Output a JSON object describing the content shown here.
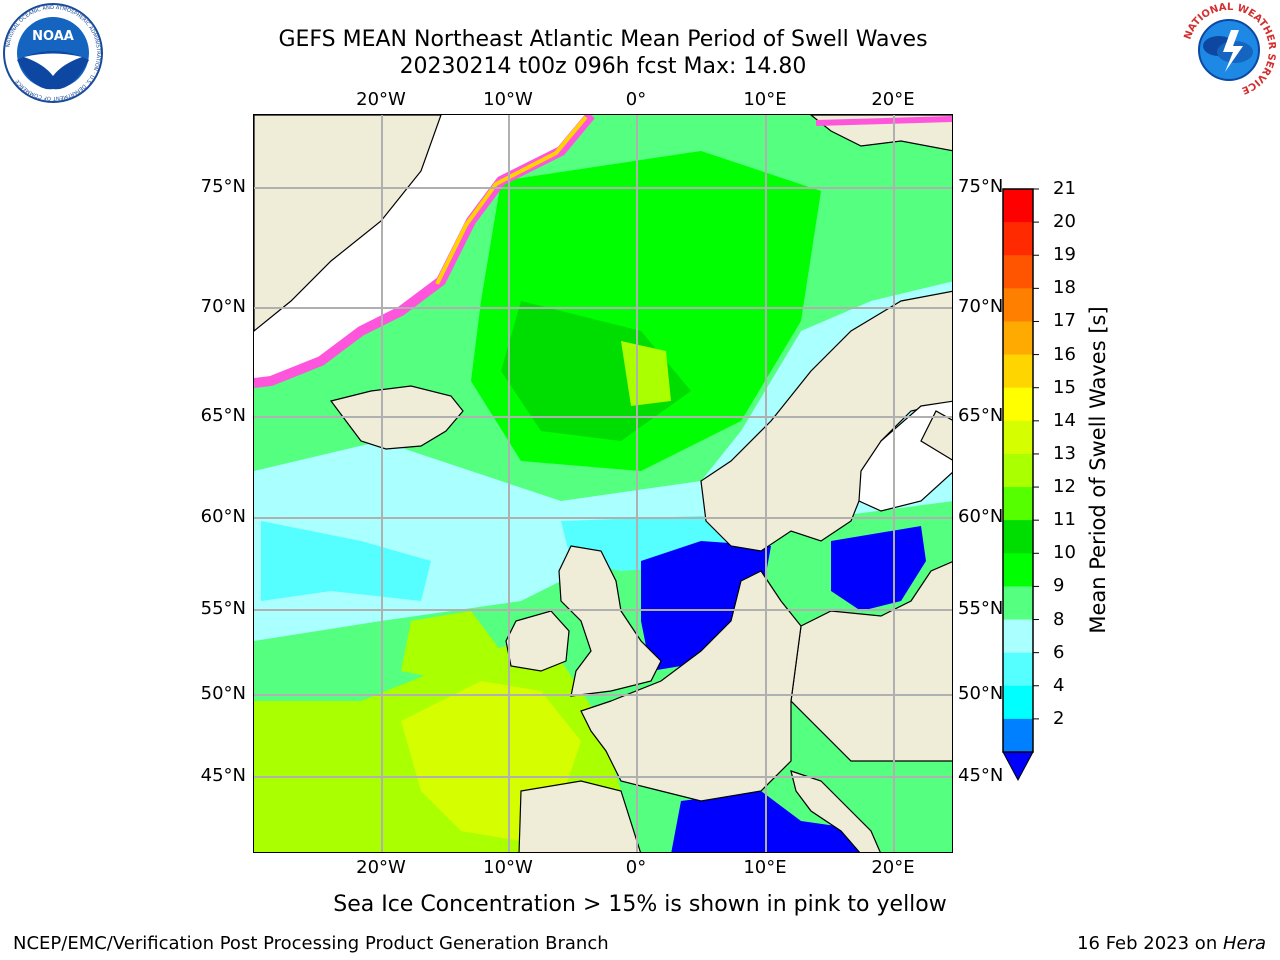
{
  "title": {
    "line1": "GEFS MEAN Northeast Atlantic Mean Period of Swell Waves",
    "line2": "20230214 t00z 096h fcst   Max: 14.80"
  },
  "logos": {
    "left": "NOAA",
    "left_ring": "NATIONAL OCEANIC AND ATMOSPHERIC ADMINISTRATION · U.S. DEPARTMENT OF COMMERCE",
    "right_ring": "NATIONAL WEATHER SERVICE"
  },
  "map": {
    "lon_labels": [
      "20°W",
      "10°W",
      "0°",
      "10°E",
      "20°E"
    ],
    "lat_labels": [
      "75°N",
      "70°N",
      "65°N",
      "60°N",
      "55°N",
      "50°N",
      "45°N"
    ]
  },
  "colorbar": {
    "label": "Mean Period of Swell Waves [s]",
    "ticks": [
      "21",
      "20",
      "19",
      "18",
      "17",
      "16",
      "15",
      "14",
      "13",
      "12",
      "11",
      "10",
      "9",
      "8",
      "6",
      "4",
      "2"
    ],
    "colors": [
      "#ff0000",
      "#ff2a00",
      "#ff5500",
      "#ff8000",
      "#ffaa00",
      "#ffd500",
      "#ffff00",
      "#d5ff00",
      "#aaff00",
      "#55ff00",
      "#00dd00",
      "#00ff00",
      "#55ff80",
      "#aaffff",
      "#55ffff",
      "#00ffff",
      "#0080ff"
    ],
    "min_color": "#0000ff"
  },
  "footer": {
    "note": "Sea Ice Concentration > 15% is shown in pink to yellow",
    "left": "NCEP/EMC/Verification Post Processing Product Generation Branch",
    "date": "16 Feb 2023 on ",
    "host": "Hera"
  }
}
